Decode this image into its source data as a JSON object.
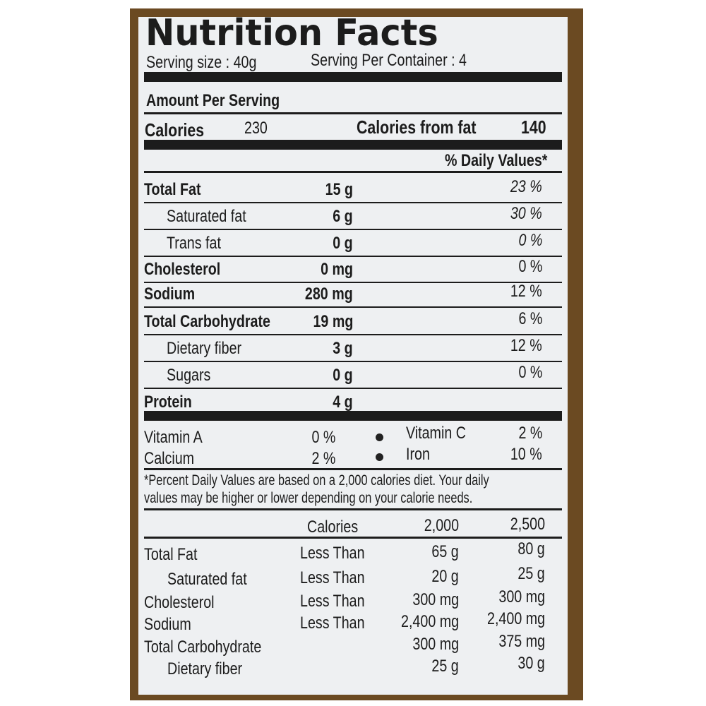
{
  "title": "Nutrition Facts",
  "serving_size": "Serving size : 40g",
  "servings_per_container": "Serving Per Container : 4",
  "amount_per_serving": "Amount Per Serving",
  "calories": {
    "label": "Calories",
    "value": "230",
    "from_fat_label": "Calories from fat",
    "from_fat_value": "140"
  },
  "daily_values_header": "% Daily Values*",
  "nutrients": [
    {
      "name": "Total Fat",
      "amount": "15 g",
      "dv": "23 %",
      "bold": true
    },
    {
      "name": "Saturated fat",
      "amount": "6 g",
      "dv": "30 %",
      "indent": true
    },
    {
      "name": "Trans fat",
      "amount": "0 g",
      "dv": "0 %",
      "indent": true
    },
    {
      "name": "Cholesterol",
      "amount": "0 mg",
      "dv": "0 %",
      "bold": true
    },
    {
      "name": "Sodium",
      "amount": "280 mg",
      "dv": "12 %",
      "bold": true
    },
    {
      "name": "Total Carbohydrate",
      "amount": "19 mg",
      "dv": "6 %",
      "bold": true
    },
    {
      "name": "Dietary fiber",
      "amount": "3 g",
      "dv": "12 %",
      "indent": true
    },
    {
      "name": "Sugars",
      "amount": "0 g",
      "dv": "0 %",
      "indent": true
    },
    {
      "name": "Protein",
      "amount": "4 g",
      "dv": "",
      "bold": true
    }
  ],
  "vitamins": [
    {
      "left_name": "Vitamin A",
      "left_value": "0 %",
      "right_name": "Vitamin C",
      "right_value": "2 %"
    },
    {
      "left_name": "Calcium",
      "left_value": "2 %",
      "right_name": "Iron",
      "right_value": "10 %"
    }
  ],
  "footnote": [
    "*Percent Daily Values are based on a 2,000 calories diet. Your daily",
    "values may be higher or lower depending on your calorie needs."
  ],
  "reference": {
    "headers": [
      "Calories",
      "2,000",
      "2,500"
    ],
    "rows": [
      {
        "name": "Total Fat",
        "cond": "Less Than",
        "v2000": "65 g",
        "v2500": "80 g"
      },
      {
        "name": "Saturated fat",
        "cond": "Less Than",
        "v2000": "20 g",
        "v2500": "25 g",
        "indent": true
      },
      {
        "name": "Cholesterol",
        "cond": "Less Than",
        "v2000": "300 mg",
        "v2500": "300 mg"
      },
      {
        "name": "Sodium",
        "cond": "Less Than",
        "v2000": "2,400 mg",
        "v2500": "2,400 mg"
      },
      {
        "name": "Total Carbohydrate",
        "cond": "",
        "v2000": "300 mg",
        "v2500": "375 mg"
      },
      {
        "name": "Dietary fiber",
        "cond": "",
        "v2000": "25 g",
        "v2500": "30 g",
        "indent": true
      }
    ]
  },
  "colors": {
    "frame": "#6b4a22",
    "label": "#eef0f2",
    "ink": "#1c1c1c"
  }
}
